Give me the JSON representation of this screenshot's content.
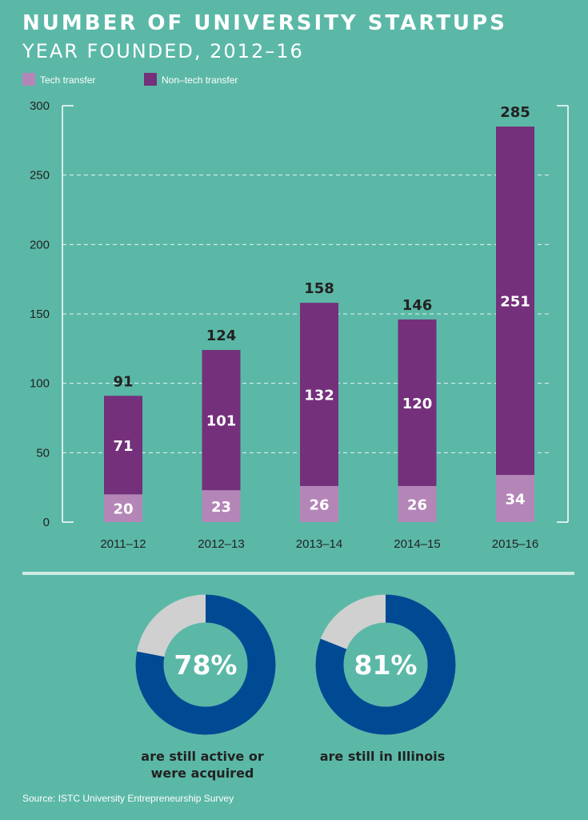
{
  "header": {
    "title": "NUMBER OF UNIVERSITY STARTUPS",
    "subtitle": "YEAR FOUNDED, 2012–16"
  },
  "colors": {
    "background": "#5bb8a7",
    "tech_transfer": "#b486b8",
    "non_tech_transfer": "#74307b",
    "donut_main": "#004a93",
    "donut_rest": "#d0d0d0",
    "text_dark": "#222222",
    "text_light": "#ffffff"
  },
  "chart_data": [
    {
      "type": "bar",
      "stacked": true,
      "categories": [
        "2011–12",
        "2012–13",
        "2013–14",
        "2014–15",
        "2015–16"
      ],
      "series": [
        {
          "name": "Tech transfer",
          "values": [
            20,
            23,
            26,
            26,
            34
          ]
        },
        {
          "name": "Non–tech transfer",
          "values": [
            71,
            101,
            132,
            120,
            251
          ]
        }
      ],
      "totals": [
        91,
        124,
        158,
        146,
        285
      ],
      "yticks": [
        0,
        50,
        100,
        150,
        200,
        250,
        300
      ],
      "ylim": [
        0,
        300
      ],
      "grid": "dashed horizontal",
      "legend": "top-left"
    },
    {
      "type": "pie",
      "variant": "donut",
      "center_label": "78%",
      "caption": "are still active or\nwere acquired",
      "values": [
        78,
        22
      ]
    },
    {
      "type": "pie",
      "variant": "donut",
      "center_label": "81%",
      "caption": "are still in Illinois",
      "values": [
        81,
        19
      ]
    }
  ],
  "footer": {
    "source": "Source: ISTC University Entrepreneurship Survey"
  }
}
